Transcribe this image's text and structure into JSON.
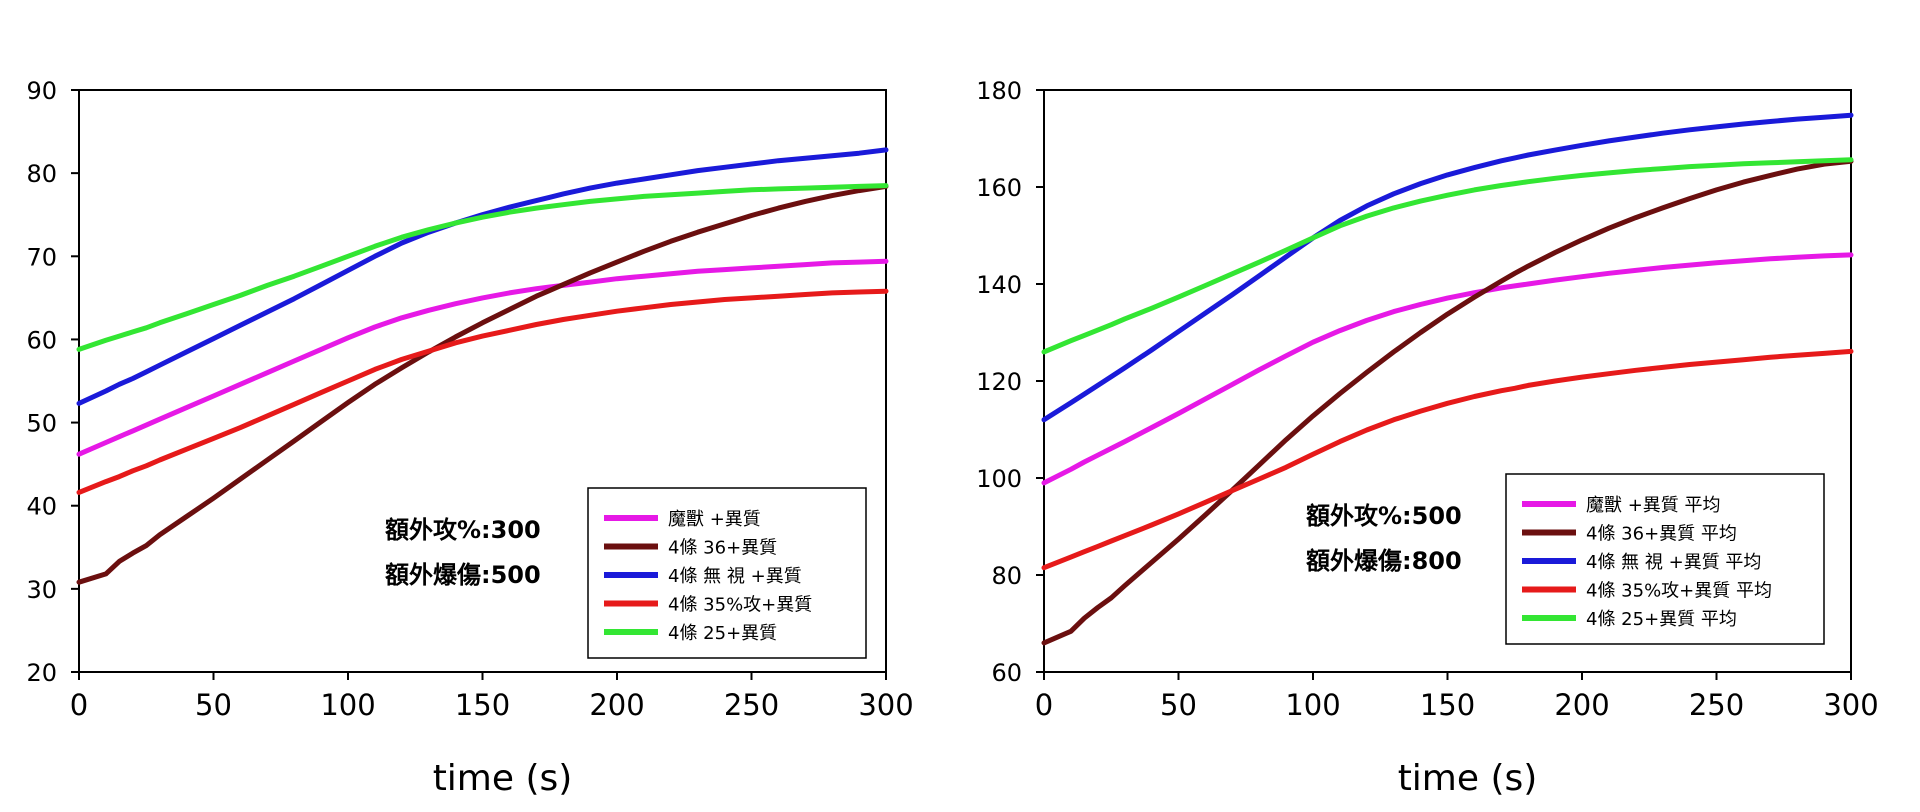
{
  "chart_data": [
    {
      "type": "line",
      "xlabel": "time (s)",
      "ylabel": "",
      "xlim": [
        0,
        300
      ],
      "ylim": [
        20,
        90
      ],
      "xticks": [
        0,
        50,
        100,
        150,
        200,
        250,
        300
      ],
      "yticks": [
        20,
        30,
        40,
        50,
        60,
        70,
        80,
        90
      ],
      "grid": false,
      "legend_position": "bottom-right",
      "annotations": [
        "額外攻%:300",
        "額外爆傷:500"
      ],
      "x": [
        0,
        10,
        15,
        20,
        25,
        30,
        40,
        50,
        60,
        70,
        80,
        90,
        100,
        110,
        120,
        130,
        140,
        150,
        160,
        170,
        175,
        180,
        190,
        200,
        210,
        220,
        230,
        240,
        250,
        260,
        270,
        280,
        290,
        300
      ],
      "series": [
        {
          "name": "魔獸 +異質",
          "color": "#e619e6",
          "values": [
            46.2,
            47.6,
            48.3,
            49.0,
            49.7,
            50.4,
            51.8,
            53.2,
            54.6,
            56.0,
            57.4,
            58.8,
            60.2,
            61.5,
            62.6,
            63.5,
            64.3,
            65.0,
            65.6,
            66.1,
            66.3,
            66.5,
            66.9,
            67.3,
            67.6,
            67.9,
            68.2,
            68.4,
            68.6,
            68.8,
            69.0,
            69.2,
            69.3,
            69.4
          ]
        },
        {
          "name": "4條 36+異質",
          "color": "#6b0f0f",
          "values": [
            30.8,
            31.8,
            33.3,
            34.3,
            35.2,
            36.5,
            38.7,
            40.9,
            43.2,
            45.5,
            47.8,
            50.1,
            52.4,
            54.6,
            56.6,
            58.5,
            60.3,
            62.0,
            63.6,
            65.2,
            65.9,
            66.6,
            68.0,
            69.3,
            70.6,
            71.8,
            72.9,
            73.9,
            74.9,
            75.8,
            76.6,
            77.3,
            77.9,
            78.4
          ]
        },
        {
          "name": "4條 無 視 +異質",
          "color": "#1a1ad9",
          "values": [
            52.3,
            53.8,
            54.6,
            55.3,
            56.1,
            56.9,
            58.5,
            60.1,
            61.7,
            63.3,
            64.9,
            66.6,
            68.3,
            70.0,
            71.6,
            72.9,
            74.0,
            75.0,
            75.9,
            76.7,
            77.1,
            77.5,
            78.2,
            78.8,
            79.3,
            79.8,
            80.3,
            80.7,
            81.1,
            81.5,
            81.8,
            82.1,
            82.4,
            82.8
          ]
        },
        {
          "name": "4條 35%攻+異質",
          "color": "#e61a1a",
          "values": [
            41.6,
            42.9,
            43.5,
            44.2,
            44.8,
            45.5,
            46.8,
            48.1,
            49.4,
            50.8,
            52.2,
            53.6,
            55.0,
            56.4,
            57.6,
            58.6,
            59.6,
            60.4,
            61.1,
            61.8,
            62.1,
            62.4,
            62.9,
            63.4,
            63.8,
            64.2,
            64.5,
            64.8,
            65.0,
            65.2,
            65.4,
            65.6,
            65.7,
            65.8
          ]
        },
        {
          "name": "4條 25+異質",
          "color": "#33e633",
          "values": [
            58.8,
            59.9,
            60.4,
            60.9,
            61.4,
            62.0,
            63.1,
            64.2,
            65.3,
            66.5,
            67.6,
            68.8,
            70.0,
            71.2,
            72.3,
            73.2,
            74.0,
            74.7,
            75.3,
            75.8,
            76.0,
            76.2,
            76.6,
            76.9,
            77.2,
            77.4,
            77.6,
            77.8,
            78.0,
            78.1,
            78.2,
            78.3,
            78.4,
            78.5
          ]
        }
      ]
    },
    {
      "type": "line",
      "xlabel": "time (s)",
      "ylabel": "",
      "xlim": [
        0,
        300
      ],
      "ylim": [
        60,
        180
      ],
      "xticks": [
        0,
        50,
        100,
        150,
        200,
        250,
        300
      ],
      "yticks": [
        60,
        80,
        100,
        120,
        140,
        160,
        180
      ],
      "grid": false,
      "legend_position": "bottom-right",
      "annotations": [
        "額外攻%:500",
        "額外爆傷:800"
      ],
      "x": [
        0,
        10,
        15,
        20,
        25,
        30,
        40,
        50,
        60,
        70,
        80,
        90,
        100,
        110,
        120,
        130,
        140,
        150,
        160,
        170,
        175,
        180,
        190,
        200,
        210,
        220,
        230,
        240,
        250,
        260,
        270,
        280,
        290,
        300
      ],
      "series": [
        {
          "name": "魔獸 +異質  平均",
          "color": "#e619e6",
          "values": [
            99.0,
            101.8,
            103.3,
            104.7,
            106.1,
            107.5,
            110.4,
            113.3,
            116.3,
            119.3,
            122.3,
            125.2,
            128.0,
            130.4,
            132.5,
            134.3,
            135.8,
            137.1,
            138.2,
            139.2,
            139.6,
            140.0,
            140.8,
            141.5,
            142.2,
            142.8,
            143.4,
            143.9,
            144.4,
            144.8,
            145.2,
            145.5,
            145.8,
            146.0
          ]
        },
        {
          "name": "4條 36+異質  平均",
          "color": "#6b0f0f",
          "values": [
            66.0,
            68.4,
            71.1,
            73.3,
            75.3,
            77.8,
            82.6,
            87.4,
            92.4,
            97.5,
            102.7,
            107.9,
            112.8,
            117.4,
            121.8,
            126.0,
            130.0,
            133.8,
            137.3,
            140.6,
            142.2,
            143.7,
            146.5,
            149.1,
            151.5,
            153.7,
            155.7,
            157.6,
            159.4,
            161.0,
            162.4,
            163.7,
            164.7,
            165.3
          ]
        },
        {
          "name": "4條 無 視 +異質   平均",
          "color": "#1a1ad9",
          "values": [
            112.0,
            115.5,
            117.3,
            119.1,
            120.9,
            122.7,
            126.4,
            130.2,
            134.0,
            137.8,
            141.7,
            145.6,
            149.5,
            153.1,
            156.1,
            158.6,
            160.7,
            162.5,
            164.0,
            165.4,
            166.0,
            166.6,
            167.6,
            168.6,
            169.5,
            170.3,
            171.1,
            171.8,
            172.4,
            173.0,
            173.5,
            174.0,
            174.4,
            174.8
          ]
        },
        {
          "name": "4條 35%攻+異質   平均",
          "color": "#e61a1a",
          "values": [
            81.5,
            83.7,
            84.8,
            85.9,
            87.0,
            88.1,
            90.3,
            92.6,
            95.0,
            97.4,
            99.8,
            102.2,
            104.9,
            107.5,
            109.9,
            112.0,
            113.8,
            115.4,
            116.8,
            118.0,
            118.5,
            119.1,
            120.0,
            120.8,
            121.5,
            122.2,
            122.8,
            123.4,
            123.9,
            124.4,
            124.9,
            125.3,
            125.7,
            126.1
          ]
        },
        {
          "name": "4條 25+異質  平均",
          "color": "#33e633",
          "values": [
            126.0,
            128.3,
            129.4,
            130.5,
            131.6,
            132.8,
            135.0,
            137.3,
            139.7,
            142.1,
            144.5,
            147.0,
            149.5,
            152.0,
            154.0,
            155.7,
            157.1,
            158.3,
            159.4,
            160.3,
            160.7,
            161.1,
            161.8,
            162.4,
            162.9,
            163.4,
            163.8,
            164.2,
            164.5,
            164.8,
            165.0,
            165.2,
            165.4,
            165.6
          ]
        }
      ]
    }
  ]
}
